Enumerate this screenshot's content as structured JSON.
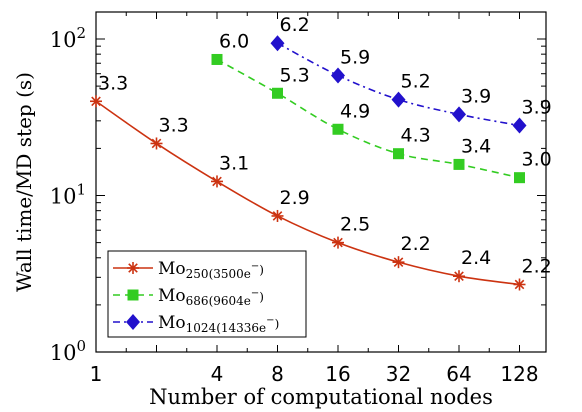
{
  "chart_data": {
    "type": "line",
    "xscale": "log2",
    "yscale": "log10",
    "xlabel": "Number of computational nodes",
    "ylabel": "Wall time/MD step (s)",
    "xlim": [
      1,
      256
    ],
    "ylim": [
      1,
      150
    ],
    "xticks": [
      {
        "value": 1,
        "label": "1"
      },
      {
        "value": 4,
        "label": "4"
      },
      {
        "value": 8,
        "label": "8"
      },
      {
        "value": 16,
        "label": "16"
      },
      {
        "value": 32,
        "label": "32"
      },
      {
        "value": 64,
        "label": "64"
      },
      {
        "value": 128,
        "label": "128"
      }
    ],
    "yticks": [
      {
        "value": 1,
        "base": "10",
        "exp": "0"
      },
      {
        "value": 10,
        "base": "10",
        "exp": "1"
      },
      {
        "value": 100,
        "base": "10",
        "exp": "2"
      }
    ],
    "legend_position": "bottom-left",
    "series": [
      {
        "name_main": "Mo",
        "name_sub": "250",
        "name_extra": "(3500e",
        "name_sup": "−",
        "name_close": ")",
        "color": "#cc3311",
        "line": "solid",
        "marker": "asterisk",
        "x": [
          1,
          2,
          4,
          8,
          16,
          32,
          64,
          128
        ],
        "y": [
          40,
          21.5,
          12.3,
          7.4,
          5.0,
          3.75,
          3.05,
          2.7
        ],
        "labels": [
          "3.3",
          "3.3",
          "3.1",
          "2.9",
          "2.5",
          "2.2",
          "2.4",
          "2.2"
        ]
      },
      {
        "name_main": "Mo",
        "name_sub": "686",
        "name_extra": "(9604e",
        "name_sup": "−",
        "name_close": ")",
        "color": "#33cc22",
        "line": "dashed",
        "marker": "square",
        "x": [
          4,
          8,
          16,
          32,
          64,
          128
        ],
        "y": [
          74,
          45,
          26.5,
          18.5,
          15.8,
          13.0
        ],
        "labels": [
          "6.0",
          "5.3",
          "4.9",
          "4.3",
          "3.4",
          "3.0"
        ]
      },
      {
        "name_main": "Mo",
        "name_sub": "1024",
        "name_extra": "(14336e",
        "name_sup": "−",
        "name_close": ")",
        "color": "#2211cc",
        "line": "dashdot",
        "marker": "diamond",
        "x": [
          8,
          16,
          32,
          64,
          128
        ],
        "y": [
          94,
          58.5,
          41,
          33,
          28
        ],
        "labels": [
          "6.2",
          "5.9",
          "5.2",
          "3.9",
          "3.9"
        ]
      }
    ]
  }
}
